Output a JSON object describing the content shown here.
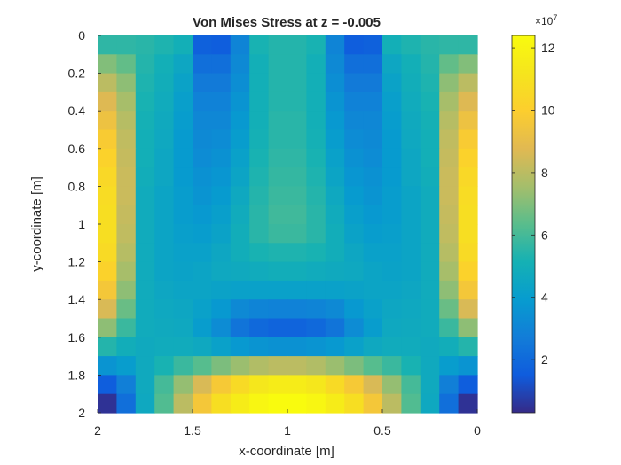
{
  "chart_data": {
    "type": "heatmap",
    "title": "Von Mises Stress at z = -0.005",
    "xlabel": "x-coordinate [m]",
    "ylabel": "y-coordinate [m]",
    "x_reversed": true,
    "y_reversed": true,
    "xlim": [
      0,
      2
    ],
    "ylim": [
      0,
      2
    ],
    "grid": false,
    "x_ticks": [
      {
        "value": 2,
        "label": "2"
      },
      {
        "value": 1.5,
        "label": "1.5"
      },
      {
        "value": 1,
        "label": "1"
      },
      {
        "value": 0.5,
        "label": "0.5"
      },
      {
        "value": 0,
        "label": "0"
      }
    ],
    "y_ticks": [
      {
        "value": 0,
        "label": "0"
      },
      {
        "value": 0.2,
        "label": "0.2"
      },
      {
        "value": 0.4,
        "label": "0.4"
      },
      {
        "value": 0.6,
        "label": "0.6"
      },
      {
        "value": 0.8,
        "label": "0.8"
      },
      {
        "value": 1,
        "label": "1"
      },
      {
        "value": 1.2,
        "label": "1.2"
      },
      {
        "value": 1.4,
        "label": "1.4"
      },
      {
        "value": 1.6,
        "label": "1.6"
      },
      {
        "value": 1.8,
        "label": "1.8"
      },
      {
        "value": 2,
        "label": "2"
      }
    ],
    "colorbar": {
      "colormap": "parula",
      "range": [
        0.3,
        12.4
      ],
      "exponent_label": "×10",
      "exponent_power": "7",
      "ticks": [
        {
          "value": 2,
          "label": "2"
        },
        {
          "value": 4,
          "label": "4"
        },
        {
          "value": 6,
          "label": "6"
        },
        {
          "value": 8,
          "label": "8"
        },
        {
          "value": 10,
          "label": "10"
        },
        {
          "value": 12,
          "label": "12"
        }
      ]
    },
    "grid_size": [
      20,
      20
    ],
    "cell_values_x1e7": [
      [
        5.6,
        5.6,
        5.5,
        5.3,
        5.0,
        1.7,
        1.6,
        3.0,
        5.2,
        5.4,
        5.4,
        5.2,
        3.0,
        1.6,
        1.7,
        5.0,
        5.3,
        5.5,
        5.6,
        5.6
      ],
      [
        7.0,
        6.5,
        5.4,
        5.0,
        4.5,
        2.2,
        2.2,
        3.2,
        5.0,
        5.4,
        5.4,
        5.0,
        3.2,
        2.2,
        2.2,
        4.5,
        5.0,
        5.4,
        6.5,
        7.0
      ],
      [
        8.0,
        7.2,
        5.3,
        4.9,
        4.3,
        2.6,
        2.6,
        3.4,
        5.0,
        5.4,
        5.4,
        5.0,
        3.4,
        2.6,
        2.6,
        4.3,
        4.9,
        5.3,
        7.2,
        8.0
      ],
      [
        8.7,
        7.6,
        5.2,
        4.8,
        4.1,
        2.9,
        2.9,
        3.6,
        5.0,
        5.4,
        5.4,
        5.0,
        3.6,
        2.9,
        2.9,
        4.1,
        4.8,
        5.2,
        7.6,
        8.7
      ],
      [
        9.3,
        7.9,
        5.1,
        4.7,
        4.0,
        3.1,
        3.1,
        3.8,
        5.0,
        5.5,
        5.5,
        5.0,
        3.8,
        3.1,
        3.1,
        4.0,
        4.7,
        5.1,
        7.9,
        9.3
      ],
      [
        9.8,
        8.1,
        5.0,
        4.6,
        3.9,
        3.2,
        3.3,
        4.0,
        5.1,
        5.5,
        5.5,
        5.1,
        4.0,
        3.3,
        3.2,
        3.9,
        4.6,
        5.0,
        8.1,
        9.8
      ],
      [
        10.2,
        8.2,
        5.0,
        4.5,
        3.9,
        3.3,
        3.5,
        4.2,
        5.2,
        5.6,
        5.6,
        5.2,
        4.2,
        3.5,
        3.3,
        3.9,
        4.5,
        5.0,
        8.2,
        10.2
      ],
      [
        10.5,
        8.3,
        4.9,
        4.5,
        3.9,
        3.5,
        3.7,
        4.4,
        5.3,
        5.7,
        5.7,
        5.3,
        4.4,
        3.7,
        3.5,
        3.9,
        4.5,
        4.9,
        8.3,
        10.5
      ],
      [
        10.7,
        8.3,
        4.8,
        4.4,
        4.0,
        3.6,
        3.9,
        4.6,
        5.4,
        5.8,
        5.8,
        5.4,
        4.6,
        3.9,
        3.6,
        4.0,
        4.4,
        4.8,
        8.3,
        10.7
      ],
      [
        10.8,
        8.2,
        4.8,
        4.4,
        4.0,
        3.8,
        4.1,
        4.8,
        5.5,
        5.9,
        5.9,
        5.5,
        4.8,
        4.1,
        3.8,
        4.0,
        4.4,
        4.8,
        8.2,
        10.8
      ],
      [
        10.8,
        8.1,
        4.8,
        4.4,
        4.1,
        4.0,
        4.3,
        4.9,
        5.5,
        5.8,
        5.8,
        5.5,
        4.9,
        4.3,
        4.0,
        4.1,
        4.4,
        4.8,
        8.1,
        10.8
      ],
      [
        10.6,
        7.9,
        4.8,
        4.4,
        4.2,
        4.2,
        4.5,
        4.9,
        5.2,
        5.3,
        5.3,
        5.2,
        4.9,
        4.5,
        4.2,
        4.2,
        4.4,
        4.8,
        7.9,
        10.6
      ],
      [
        10.2,
        7.6,
        4.8,
        4.4,
        4.3,
        4.4,
        4.6,
        4.7,
        4.8,
        4.9,
        4.9,
        4.8,
        4.7,
        4.6,
        4.4,
        4.3,
        4.4,
        4.8,
        7.6,
        10.2
      ],
      [
        9.6,
        7.2,
        4.8,
        4.5,
        4.4,
        4.4,
        4.3,
        4.2,
        4.2,
        4.2,
        4.2,
        4.2,
        4.2,
        4.3,
        4.4,
        4.4,
        4.5,
        4.8,
        7.2,
        9.6
      ],
      [
        8.6,
        6.6,
        4.8,
        4.6,
        4.5,
        4.2,
        3.8,
        3.2,
        3.0,
        2.9,
        2.9,
        3.0,
        3.2,
        3.8,
        4.2,
        4.5,
        4.6,
        4.8,
        6.6,
        8.6
      ],
      [
        7.2,
        5.8,
        4.8,
        4.7,
        4.6,
        4.0,
        3.3,
        2.4,
        2.0,
        1.8,
        1.8,
        2.0,
        2.4,
        3.3,
        4.0,
        4.6,
        4.7,
        4.8,
        5.8,
        7.2
      ],
      [
        5.4,
        4.9,
        4.7,
        4.8,
        4.8,
        4.6,
        4.2,
        3.8,
        3.6,
        3.5,
        3.5,
        3.6,
        3.8,
        4.2,
        4.6,
        4.8,
        4.8,
        4.7,
        4.9,
        5.4
      ],
      [
        3.6,
        4.0,
        4.7,
        5.2,
        5.8,
        6.3,
        6.9,
        7.4,
        7.8,
        8.0,
        8.0,
        7.8,
        7.4,
        6.9,
        6.3,
        5.8,
        5.2,
        4.7,
        4.0,
        3.6
      ],
      [
        1.6,
        2.8,
        4.7,
        6.0,
        7.3,
        8.6,
        9.7,
        10.6,
        11.3,
        11.6,
        11.6,
        11.3,
        10.6,
        9.7,
        8.6,
        7.3,
        6.0,
        4.7,
        2.8,
        1.6
      ],
      [
        0.5,
        2.2,
        4.6,
        6.2,
        8.0,
        9.6,
        10.8,
        11.6,
        12.1,
        12.4,
        12.4,
        12.1,
        11.6,
        10.8,
        9.6,
        8.0,
        6.2,
        4.6,
        2.2,
        0.5
      ]
    ]
  }
}
